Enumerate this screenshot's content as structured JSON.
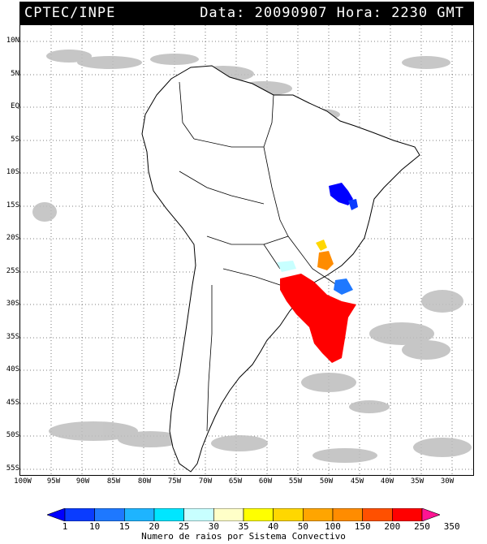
{
  "header": {
    "source": "CPTEC/INPE",
    "datetime": "Data: 20090907 Hora: 2230 GMT"
  },
  "map": {
    "lat_labels": [
      "10N",
      "5N",
      "EQ",
      "5S",
      "10S",
      "15S",
      "20S",
      "25S",
      "30S",
      "35S",
      "40S",
      "45S",
      "50S",
      "55S"
    ],
    "lon_labels": [
      "100W",
      "95W",
      "90W",
      "85W",
      "80W",
      "75W",
      "70W",
      "65W",
      "60W",
      "55W",
      "50W",
      "45W",
      "40W",
      "35W",
      "30W"
    ]
  },
  "legend": {
    "title": "Numero de raios por Sistema Convectivo",
    "values": [
      "1",
      "10",
      "15",
      "20",
      "25",
      "30",
      "35",
      "40",
      "50",
      "100",
      "150",
      "200",
      "250",
      "350"
    ],
    "colors": [
      "#0000ff",
      "#0a3cff",
      "#1e78ff",
      "#1eb4ff",
      "#00e6ff",
      "#c8ffff",
      "#ffffc8",
      "#ffff00",
      "#ffd700",
      "#ffa500",
      "#ff8c00",
      "#ff5000",
      "#ff0000",
      "#ff1493"
    ]
  }
}
